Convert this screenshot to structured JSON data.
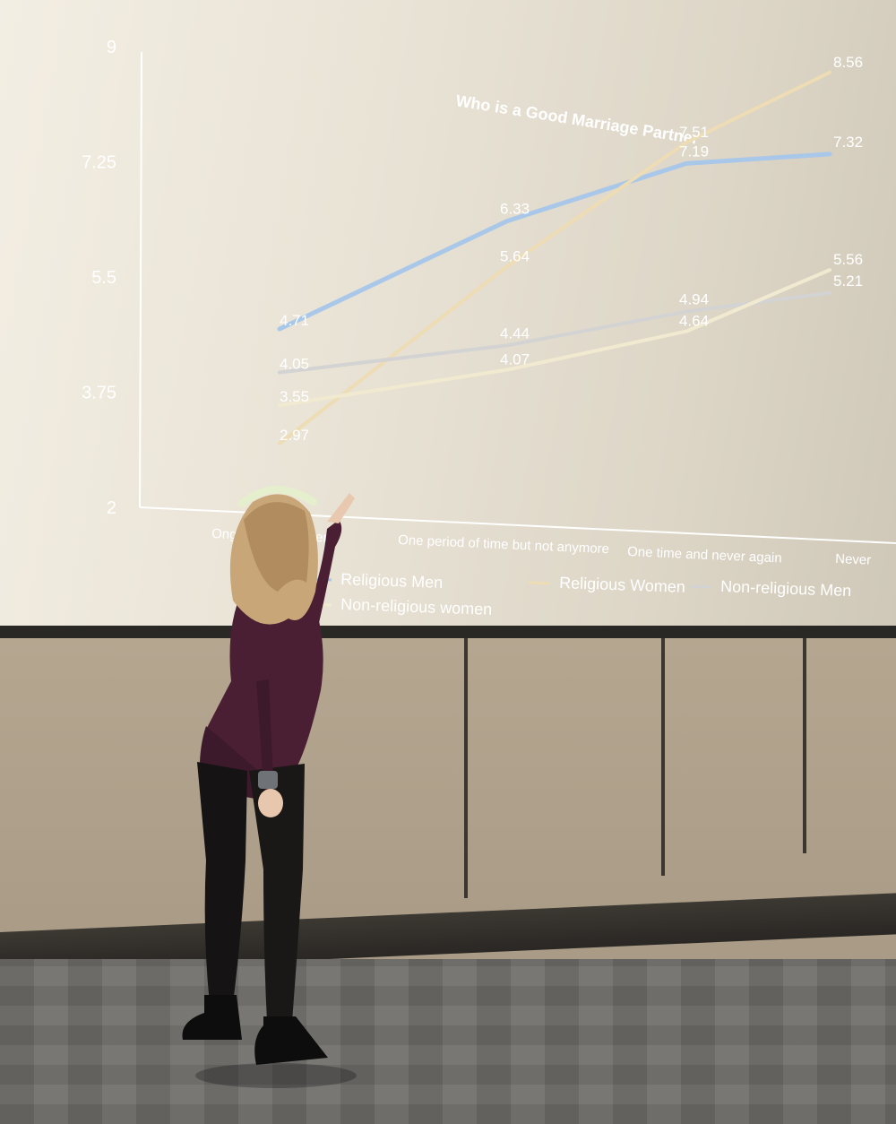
{
  "chart_data": {
    "type": "line",
    "title": "Who is  a Good Marriage Partner",
    "categories": [
      "Ongoing Problem",
      "One period of time but not anymore",
      "One time and never again",
      "Never"
    ],
    "category_labels_visible": [
      "Ong",
      "em",
      "One period of time but not anymore",
      "One time and never again",
      "Never"
    ],
    "y_ticks": [
      "2",
      "3.75",
      "5.5",
      "7.25",
      "9"
    ],
    "ylim": [
      2,
      9
    ],
    "series": [
      {
        "name": "Religious Men",
        "values": [
          4.71,
          6.33,
          7.19,
          7.32
        ],
        "color": "#a9c7e8"
      },
      {
        "name": "Religious Women",
        "values": [
          2.97,
          5.64,
          7.51,
          8.56
        ],
        "color": "#eddcb4"
      },
      {
        "name": "Non-religious Men",
        "values": [
          4.05,
          4.44,
          4.94,
          5.21
        ],
        "color": "#d3d3d3"
      },
      {
        "name": "Non-religious women",
        "values": [
          3.55,
          4.07,
          4.64,
          5.56
        ],
        "color": "#f1ead0"
      }
    ],
    "data_labels": [
      [
        "4.71",
        "6.33",
        "7.19",
        "7.32"
      ],
      [
        "2.97",
        "5.64",
        "7.51",
        "8.56"
      ],
      [
        "4.05",
        "4.44",
        "4.94",
        "5.21"
      ],
      [
        "3.55",
        "4.07",
        "4.64",
        "5.56"
      ]
    ],
    "legend": [
      "Religious Men",
      "Religious Women",
      "Non-religious Men",
      "Non-religious women"
    ],
    "legend_position": "bottom",
    "grid": false
  }
}
